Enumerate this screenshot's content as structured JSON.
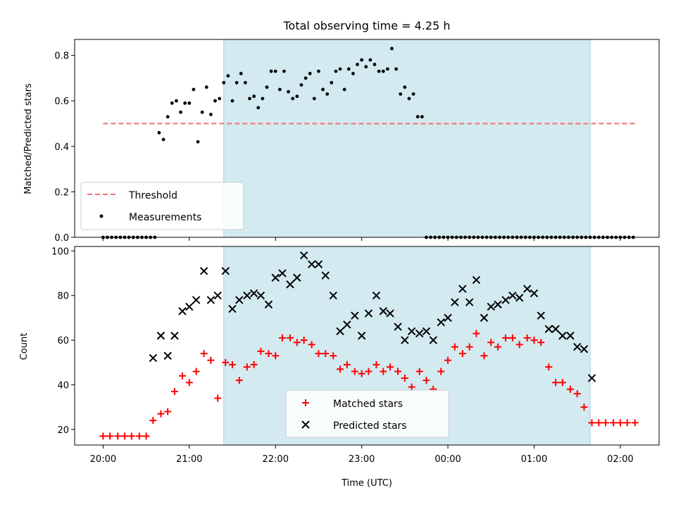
{
  "figure_title": "Total observing time = 4.25 h",
  "colors": {
    "window_fill": "#d3eaf0",
    "threshold": "#f07070",
    "measurement": "#000000",
    "matched": "#ff0000",
    "predicted": "#000000"
  },
  "chart_data": [
    {
      "type": "scatter",
      "ylabel": "Matched/Predicted stars",
      "ylim": [
        0,
        0.87
      ],
      "xlim": [
        -0.33,
        6.45
      ],
      "y_ticks": [
        0.0,
        0.2,
        0.4,
        0.6,
        0.8
      ],
      "y_tick_labels": [
        "0.0",
        "0.2",
        "0.4",
        "0.6",
        "0.8"
      ],
      "observing_window": [
        1.4,
        5.65
      ],
      "threshold": {
        "value": 0.5,
        "x_range": [
          0.0,
          6.17
        ]
      },
      "legend": {
        "position": "lower left",
        "entries": [
          "Threshold",
          "Measurements"
        ]
      },
      "series": [
        {
          "name": "Measurements",
          "marker": "dot",
          "x": [
            0.0,
            0.05,
            0.1,
            0.15,
            0.2,
            0.25,
            0.3,
            0.35,
            0.4,
            0.45,
            0.5,
            0.55,
            0.6,
            0.65,
            0.7,
            0.75,
            0.8,
            0.85,
            0.9,
            0.95,
            1.0,
            1.05,
            1.1,
            1.15,
            1.2,
            1.25,
            1.3,
            1.35,
            1.4,
            1.45,
            1.5,
            1.55,
            1.6,
            1.65,
            1.7,
            1.75,
            1.8,
            1.85,
            1.9,
            1.95,
            2.0,
            2.05,
            2.1,
            2.15,
            2.2,
            2.25,
            2.3,
            2.35,
            2.4,
            2.45,
            2.5,
            2.55,
            2.6,
            2.65,
            2.7,
            2.75,
            2.8,
            2.85,
            2.9,
            2.95,
            3.0,
            3.05,
            3.1,
            3.15,
            3.2,
            3.25,
            3.3,
            3.35,
            3.4,
            3.45,
            3.5,
            3.55,
            3.6,
            3.65,
            3.7,
            3.75,
            3.8,
            3.85,
            3.9,
            3.95,
            4.0,
            4.05,
            4.1,
            4.15,
            4.2,
            4.25,
            4.3,
            4.35,
            4.4,
            4.45,
            4.5,
            4.55,
            4.6,
            4.65,
            4.7,
            4.75,
            4.8,
            4.85,
            4.9,
            4.95,
            5.0,
            5.05,
            5.1,
            5.15,
            5.2,
            5.25,
            5.3,
            5.35,
            5.4,
            5.45,
            5.5,
            5.55,
            5.6,
            5.65,
            5.7,
            5.75,
            5.8,
            5.85,
            5.9,
            5.95,
            6.0,
            6.05,
            6.1,
            6.15
          ],
          "y": [
            0,
            0,
            0,
            0,
            0,
            0,
            0,
            0,
            0,
            0,
            0,
            0,
            0,
            0.46,
            0.43,
            0.53,
            0.59,
            0.6,
            0.55,
            0.59,
            0.59,
            0.65,
            0.42,
            0.55,
            0.66,
            0.54,
            0.6,
            0.61,
            0.68,
            0.71,
            0.6,
            0.68,
            0.72,
            0.68,
            0.61,
            0.62,
            0.57,
            0.61,
            0.66,
            0.73,
            0.73,
            0.65,
            0.73,
            0.64,
            0.61,
            0.62,
            0.67,
            0.7,
            0.72,
            0.61,
            0.73,
            0.65,
            0.63,
            0.68,
            0.73,
            0.74,
            0.65,
            0.74,
            0.72,
            0.76,
            0.78,
            0.75,
            0.78,
            0.76,
            0.73,
            0.73,
            0.74,
            0.83,
            0.74,
            0.63,
            0.66,
            0.61,
            0.63,
            0.53,
            0.53,
            0,
            0,
            0,
            0,
            0,
            0,
            0,
            0,
            0,
            0,
            0,
            0,
            0,
            0,
            0,
            0,
            0,
            0,
            0,
            0,
            0,
            0,
            0,
            0,
            0,
            0,
            0,
            0,
            0,
            0,
            0,
            0,
            0,
            0,
            0,
            0,
            0,
            0,
            0,
            0,
            0,
            0,
            0,
            0,
            0,
            0,
            0,
            0,
            0
          ]
        }
      ]
    },
    {
      "type": "scatter",
      "xlabel": "Time (UTC)",
      "ylabel": "Count",
      "ylim": [
        13,
        102
      ],
      "xlim": [
        -0.33,
        6.45
      ],
      "x_ticks": [
        0,
        1,
        2,
        3,
        4,
        5,
        6
      ],
      "x_tick_labels": [
        "20:00",
        "21:00",
        "22:00",
        "23:00",
        "00:00",
        "01:00",
        "02:00"
      ],
      "y_ticks": [
        20,
        40,
        60,
        80,
        100
      ],
      "y_tick_labels": [
        "20",
        "40",
        "60",
        "80",
        "100"
      ],
      "observing_window": [
        1.4,
        5.65
      ],
      "legend": {
        "position": "lower center",
        "entries": [
          "Matched stars",
          "Predicted stars"
        ]
      },
      "series": [
        {
          "name": "Matched stars",
          "marker": "plus",
          "x": [
            0.0,
            0.08,
            0.17,
            0.25,
            0.33,
            0.42,
            0.5,
            0.58,
            0.67,
            0.75,
            0.83,
            0.92,
            1.0,
            1.08,
            1.17,
            1.25,
            1.33,
            1.42,
            1.5,
            1.58,
            1.67,
            1.75,
            1.83,
            1.92,
            2.0,
            2.08,
            2.17,
            2.25,
            2.33,
            2.42,
            2.5,
            2.58,
            2.67,
            2.75,
            2.83,
            2.92,
            3.0,
            3.08,
            3.17,
            3.25,
            3.33,
            3.42,
            3.5,
            3.58,
            3.67,
            3.75,
            3.83,
            3.92,
            4.0,
            4.08,
            4.17,
            4.25,
            4.33,
            4.42,
            4.5,
            4.58,
            4.67,
            4.75,
            4.83,
            4.92,
            5.0,
            5.08,
            5.17,
            5.25,
            5.33,
            5.42,
            5.5,
            5.58,
            5.67,
            5.75,
            5.83,
            5.92,
            6.0,
            6.08,
            6.17
          ],
          "y": [
            17,
            17,
            17,
            17,
            17,
            17,
            17,
            24,
            27,
            28,
            37,
            44,
            41,
            46,
            54,
            51,
            34,
            50,
            49,
            42,
            48,
            49,
            55,
            54,
            53,
            61,
            61,
            59,
            60,
            58,
            54,
            54,
            53,
            47,
            49,
            46,
            45,
            46,
            49,
            46,
            48,
            46,
            43,
            39,
            46,
            42,
            38,
            46,
            51,
            57,
            54,
            57,
            63,
            53,
            59,
            57,
            61,
            61,
            58,
            61,
            60,
            59,
            48,
            41,
            41,
            38,
            36,
            30,
            23,
            23,
            23,
            23,
            23,
            23,
            23
          ]
        },
        {
          "name": "Predicted stars",
          "marker": "x",
          "x": [
            0.58,
            0.67,
            0.75,
            0.83,
            0.92,
            1.0,
            1.08,
            1.17,
            1.25,
            1.33,
            1.42,
            1.5,
            1.58,
            1.67,
            1.75,
            1.83,
            1.92,
            2.0,
            2.08,
            2.17,
            2.25,
            2.33,
            2.42,
            2.5,
            2.58,
            2.67,
            2.75,
            2.83,
            2.92,
            3.0,
            3.08,
            3.17,
            3.25,
            3.33,
            3.42,
            3.5,
            3.58,
            3.67,
            3.75,
            3.83,
            3.92,
            4.0,
            4.08,
            4.17,
            4.25,
            4.33,
            4.42,
            4.5,
            4.58,
            4.67,
            4.75,
            4.83,
            4.92,
            5.0,
            5.08,
            5.17,
            5.25,
            5.33,
            5.42,
            5.5,
            5.58,
            5.67
          ],
          "y": [
            52,
            62,
            53,
            62,
            73,
            75,
            78,
            91,
            78,
            80,
            91,
            74,
            78,
            80,
            81,
            80,
            76,
            88,
            90,
            85,
            88,
            98,
            94,
            94,
            89,
            80,
            64,
            67,
            71,
            62,
            72,
            80,
            73,
            72,
            66,
            60,
            64,
            63,
            64,
            60,
            68,
            70,
            77,
            83,
            77,
            87,
            70,
            75,
            76,
            78,
            80,
            79,
            83,
            81,
            71,
            65,
            65,
            62,
            62,
            57,
            56,
            43
          ]
        }
      ]
    }
  ]
}
